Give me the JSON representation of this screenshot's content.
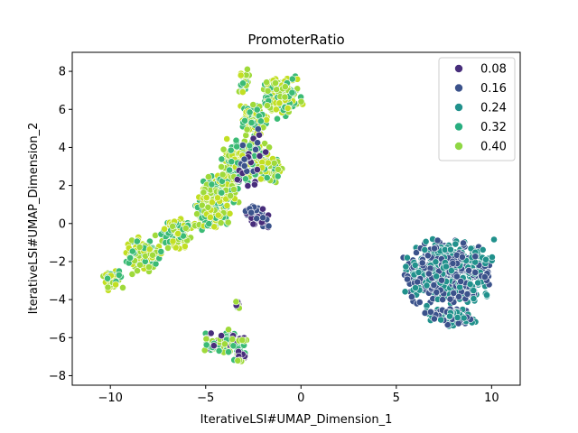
{
  "chart_data": {
    "type": "scatter",
    "title": "PromoterRatio",
    "xlabel": "IterativeLSI#UMAP_Dimension_1",
    "ylabel": "IterativeLSI#UMAP_Dimension_2",
    "xlim": [
      -12,
      11.5
    ],
    "ylim": [
      -8.5,
      9
    ],
    "xticks": [
      -10,
      -5,
      0,
      5,
      10
    ],
    "yticks": [
      -8,
      -6,
      -4,
      -2,
      0,
      2,
      4,
      6,
      8
    ],
    "grid": false,
    "legend": {
      "placement": "top-right",
      "entries": [
        {
          "label": "0.08",
          "color": "#472d7b"
        },
        {
          "label": "0.16",
          "color": "#3b528b"
        },
        {
          "label": "0.24",
          "color": "#21918c"
        },
        {
          "label": "0.32",
          "color": "#28ae80"
        },
        {
          "label": "0.40",
          "color": "#8fd744"
        }
      ]
    },
    "colors": {
      "c008": "#472d7b",
      "c016": "#3b528b",
      "c024": "#21918c",
      "c032": "#3bbb75",
      "c040": "#9fda3a",
      "c044": "#c2df23"
    },
    "clusters": [
      {
        "name": "upper-left-band",
        "color_mix": [
          "c032",
          "c040",
          "c044"
        ],
        "blobs": [
          {
            "x": [
              -10.5,
              -9.2
            ],
            "y": [
              -3.7,
              -2.3
            ],
            "n": 60
          },
          {
            "x": [
              -9.5,
              -7.2
            ],
            "y": [
              -2.8,
              -0.4
            ],
            "n": 120
          },
          {
            "x": [
              -7.5,
              -5.5
            ],
            "y": [
              -1.5,
              0.5
            ],
            "n": 110
          },
          {
            "x": [
              -6,
              -3.5
            ],
            "y": [
              -0.6,
              1.6
            ],
            "n": 230
          },
          {
            "x": [
              -5.6,
              -3
            ],
            "y": [
              0.8,
              2.7
            ],
            "n": 220
          },
          {
            "x": [
              -4.6,
              -1.2
            ],
            "y": [
              2,
              4.7
            ],
            "n": 280
          },
          {
            "x": [
              -3.6,
              -0.6
            ],
            "y": [
              2,
              3.6
            ],
            "n": 150
          },
          {
            "x": [
              -3.4,
              -1.6
            ],
            "y": [
              4.2,
              6.6
            ],
            "n": 90
          },
          {
            "x": [
              -3.4,
              -2.6
            ],
            "y": [
              6.6,
              8.3
            ],
            "n": 30
          },
          {
            "x": [
              -2.3,
              0.2
            ],
            "y": [
              5.4,
              8
            ],
            "n": 170
          }
        ]
      },
      {
        "name": "upper-left-purple",
        "color_mix": [
          "c008",
          "c016"
        ],
        "blobs": [
          {
            "x": [
              -3.2,
              -1.3
            ],
            "y": [
              -0.4,
              1.2
            ],
            "n": 45
          },
          {
            "x": [
              -4,
              -1.2
            ],
            "y": [
              1.5,
              5.5
            ],
            "n": 25
          }
        ]
      },
      {
        "name": "right-cluster",
        "color_mix": [
          "c024",
          "c016"
        ],
        "blobs": [
          {
            "x": [
              5,
              10.5
            ],
            "y": [
              -4.6,
              -0.6
            ],
            "n": 850
          },
          {
            "x": [
              6.2,
              9.6
            ],
            "y": [
              -5.5,
              -4.3
            ],
            "n": 120
          }
        ]
      },
      {
        "name": "bottom-cluster",
        "color_mix": [
          "c032",
          "c040",
          "c008"
        ],
        "blobs": [
          {
            "x": [
              -5.4,
              -2.6
            ],
            "y": [
              -7.1,
              -5.4
            ],
            "n": 110
          },
          {
            "x": [
              -3.6,
              -2.7
            ],
            "y": [
              -7.5,
              -6.5
            ],
            "n": 25
          },
          {
            "x": [
              -3.6,
              -3.1
            ],
            "y": [
              -4.6,
              -4
            ],
            "n": 10
          }
        ]
      }
    ]
  }
}
